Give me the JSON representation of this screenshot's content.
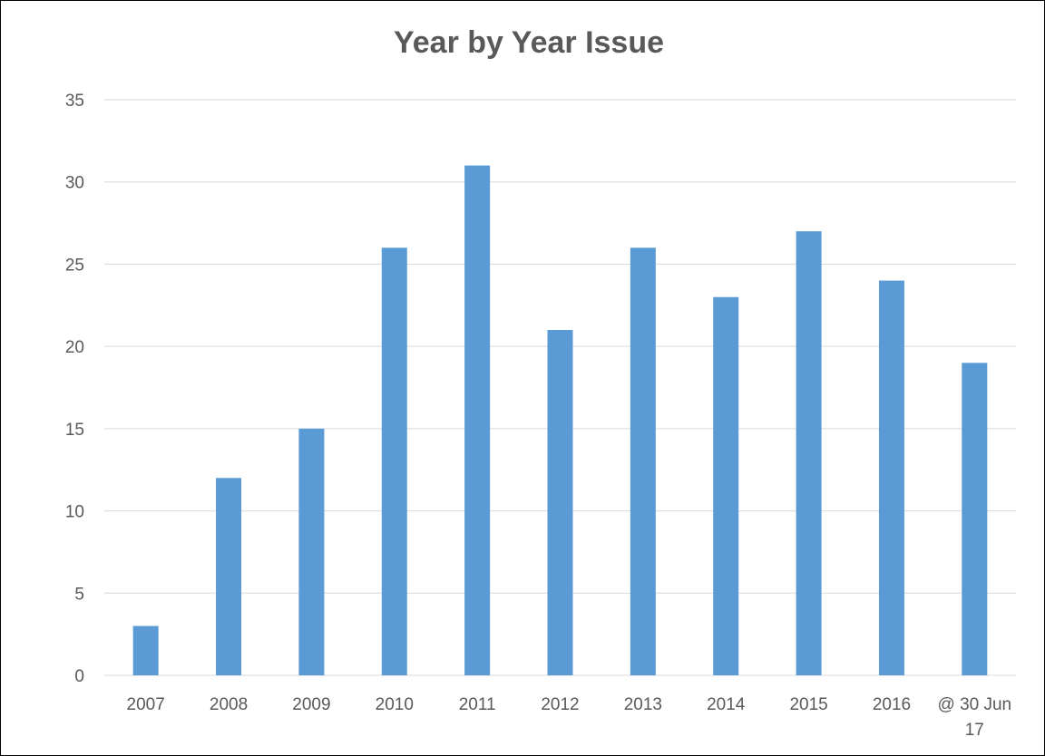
{
  "chart_data": {
    "type": "bar",
    "title": "Year by Year Issue",
    "categories": [
      "2007",
      "2008",
      "2009",
      "2010",
      "2011",
      "2012",
      "2013",
      "2014",
      "2015",
      "2016",
      "@ 30 Jun 17"
    ],
    "category_lines": [
      [
        "2007"
      ],
      [
        "2008"
      ],
      [
        "2009"
      ],
      [
        "2010"
      ],
      [
        "2011"
      ],
      [
        "2012"
      ],
      [
        "2013"
      ],
      [
        "2014"
      ],
      [
        "2015"
      ],
      [
        "2016"
      ],
      [
        "@ 30 Jun",
        "17"
      ]
    ],
    "values": [
      3,
      12,
      15,
      26,
      31,
      21,
      26,
      23,
      27,
      24,
      19
    ],
    "ylim": [
      0,
      35
    ],
    "yticks": [
      0,
      5,
      10,
      15,
      20,
      25,
      30,
      35
    ],
    "grid": true,
    "bar_color": "#5B9BD5",
    "grid_color": "#D9D9D9",
    "text_color": "#595959"
  }
}
